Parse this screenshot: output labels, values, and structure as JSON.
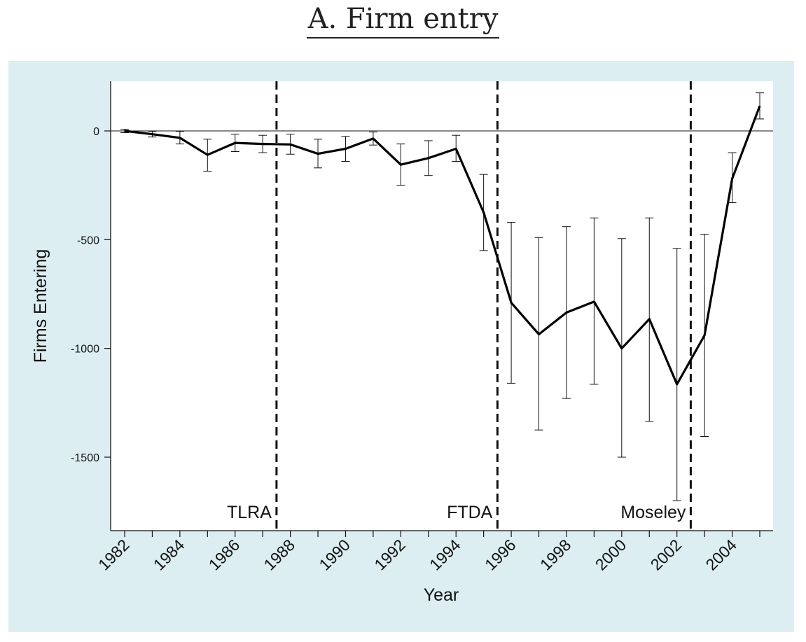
{
  "title": "A. Firm entry",
  "chart_data": {
    "type": "line",
    "title": "A. Firm entry",
    "xlabel": "Year",
    "ylabel": "Firms Entering",
    "xlim": [
      1982,
      2005
    ],
    "ylim": [
      -1800,
      200
    ],
    "yticks": [
      0,
      -500,
      -1000,
      -1500
    ],
    "xticks": [
      1982,
      1984,
      1986,
      1988,
      1990,
      1992,
      1994,
      1996,
      1998,
      2000,
      2002,
      2004
    ],
    "grid": false,
    "zero_line": true,
    "series": [
      {
        "x": [
          1982,
          1983,
          1984,
          1985,
          1986,
          1987,
          1988,
          1989,
          1990,
          1991,
          1992,
          1993,
          1994,
          1995,
          1996,
          1997,
          1998,
          1999,
          2000,
          2001,
          2002,
          2003,
          2004,
          2005
        ],
        "values": [
          0,
          -15,
          -32,
          -110,
          -55,
          -60,
          -62,
          -105,
          -82,
          -35,
          -155,
          -125,
          -82,
          -375,
          -790,
          -935,
          -835,
          -785,
          -1000,
          -865,
          -1165,
          -940,
          -220,
          115
        ],
        "error_low": [
          -8,
          -28,
          -60,
          -185,
          -95,
          -100,
          -107,
          -170,
          -140,
          -65,
          -250,
          -205,
          -140,
          -550,
          -1160,
          -1375,
          -1230,
          -1165,
          -1500,
          -1335,
          -1700,
          -1405,
          -330,
          55
        ],
        "error_high": [
          8,
          -2,
          -2,
          -38,
          -15,
          -20,
          -15,
          -38,
          -25,
          -5,
          -60,
          -45,
          -20,
          -200,
          -420,
          -490,
          -440,
          -400,
          -495,
          -400,
          -540,
          -475,
          -100,
          175
        ]
      }
    ],
    "annotations": [
      {
        "x": 1987.5,
        "label": "TLRA"
      },
      {
        "x": 1995.5,
        "label": "FTDA"
      },
      {
        "x": 2002.5,
        "label": "Moseley"
      }
    ]
  }
}
